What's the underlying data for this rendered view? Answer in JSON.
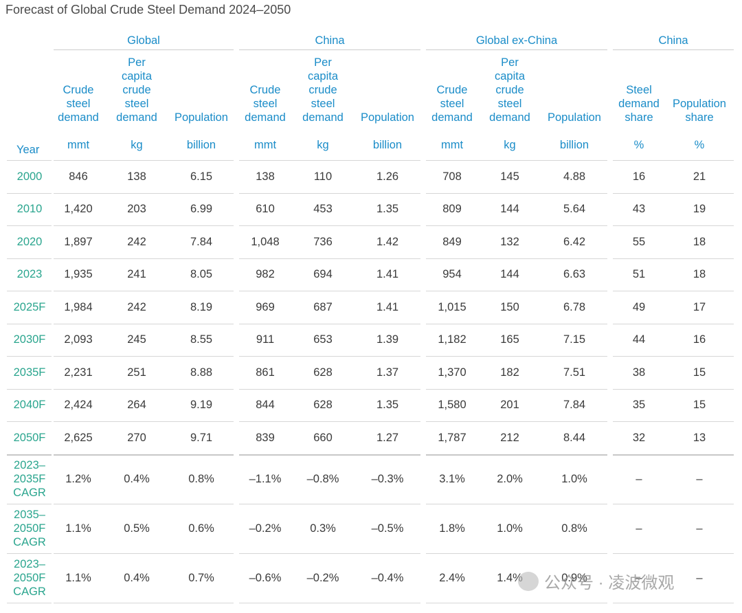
{
  "title": "Forecast of Global Crude Steel Demand 2024–2050",
  "groups": [
    "Global",
    "China",
    "Global ex-China",
    "China"
  ],
  "year_header": "Year",
  "columns": [
    {
      "label": "Crude\nsteel\ndemand",
      "unit": "mmt"
    },
    {
      "label": "Per\ncapita\ncrude\nsteel\ndemand",
      "unit": "kg"
    },
    {
      "label": "Population",
      "unit": "billion"
    },
    {
      "label": "Crude\nsteel\ndemand",
      "unit": "mmt"
    },
    {
      "label": "Per\ncapita\ncrude\nsteel\ndemand",
      "unit": "kg"
    },
    {
      "label": "Population",
      "unit": "billion"
    },
    {
      "label": "Crude\nsteel\ndemand",
      "unit": "mmt"
    },
    {
      "label": "Per\ncapita\ncrude\nsteel\ndemand",
      "unit": "kg"
    },
    {
      "label": "Population",
      "unit": "billion"
    },
    {
      "label": "Steel\ndemand\nshare",
      "unit": "%"
    },
    {
      "label": "Population\nshare",
      "unit": "%"
    }
  ],
  "rows": [
    {
      "year": "2000",
      "cells": [
        "846",
        "138",
        "6.15",
        "138",
        "110",
        "1.26",
        "708",
        "145",
        "4.88",
        "16",
        "21"
      ]
    },
    {
      "year": "2010",
      "cells": [
        "1,420",
        "203",
        "6.99",
        "610",
        "453",
        "1.35",
        "809",
        "144",
        "5.64",
        "43",
        "19"
      ]
    },
    {
      "year": "2020",
      "cells": [
        "1,897",
        "242",
        "7.84",
        "1,048",
        "736",
        "1.42",
        "849",
        "132",
        "6.42",
        "55",
        "18"
      ]
    },
    {
      "year": "2023",
      "cells": [
        "1,935",
        "241",
        "8.05",
        "982",
        "694",
        "1.41",
        "954",
        "144",
        "6.63",
        "51",
        "18"
      ]
    },
    {
      "year": "2025F",
      "cells": [
        "1,984",
        "242",
        "8.19",
        "969",
        "687",
        "1.41",
        "1,015",
        "150",
        "6.78",
        "49",
        "17"
      ]
    },
    {
      "year": "2030F",
      "cells": [
        "2,093",
        "245",
        "8.55",
        "911",
        "653",
        "1.39",
        "1,182",
        "165",
        "7.15",
        "44",
        "16"
      ]
    },
    {
      "year": "2035F",
      "cells": [
        "2,231",
        "251",
        "8.88",
        "861",
        "628",
        "1.37",
        "1,370",
        "182",
        "7.51",
        "38",
        "15"
      ]
    },
    {
      "year": "2040F",
      "cells": [
        "2,424",
        "264",
        "9.19",
        "844",
        "628",
        "1.35",
        "1,580",
        "201",
        "7.84",
        "35",
        "15"
      ]
    },
    {
      "year": "2050F",
      "cells": [
        "2,625",
        "270",
        "9.71",
        "839",
        "660",
        "1.27",
        "1,787",
        "212",
        "8.44",
        "32",
        "13"
      ]
    },
    {
      "year": "2023–\n2035F\nCAGR",
      "cells": [
        "1.2%",
        "0.4%",
        "0.8%",
        "–1.1%",
        "–0.8%",
        "–0.3%",
        "3.1%",
        "2.0%",
        "1.0%",
        "–",
        "–"
      ]
    },
    {
      "year": "2035–\n2050F\nCAGR",
      "cells": [
        "1.1%",
        "0.5%",
        "0.6%",
        "–0.2%",
        "0.3%",
        "–0.5%",
        "1.8%",
        "1.0%",
        "0.8%",
        "–",
        "–"
      ]
    },
    {
      "year": "2023–\n2050F\nCAGR",
      "cells": [
        "1.1%",
        "0.4%",
        "0.7%",
        "–0.6%",
        "–0.2%",
        "–0.4%",
        "2.4%",
        "1.4%",
        "0.9%",
        "–",
        "–"
      ]
    }
  ],
  "watermark": "公众号 · 凌波微观"
}
